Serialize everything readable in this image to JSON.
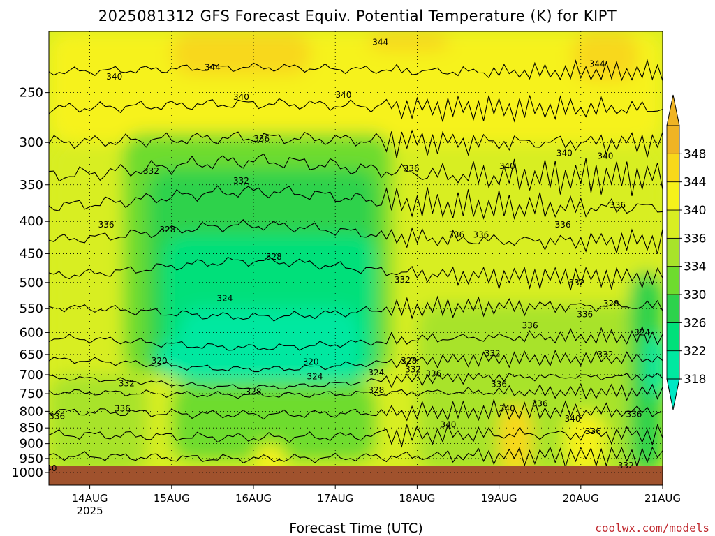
{
  "chart_data": {
    "type": "heatmap",
    "title": "2025081312 GFS Forecast Equiv. Potential Temperature (K) for KIPT",
    "xlabel": "Forecast Time (UTC)",
    "ylabel": "",
    "x_ticks": [
      {
        "label": "14AUG",
        "sub": "2025",
        "day": 1
      },
      {
        "label": "15AUG",
        "sub": "",
        "day": 2
      },
      {
        "label": "16AUG",
        "sub": "",
        "day": 3
      },
      {
        "label": "17AUG",
        "sub": "",
        "day": 4
      },
      {
        "label": "18AUG",
        "sub": "",
        "day": 5
      },
      {
        "label": "19AUG",
        "sub": "",
        "day": 6
      },
      {
        "label": "20AUG",
        "sub": "",
        "day": 7
      },
      {
        "label": "21AUG",
        "sub": "",
        "day": 8
      }
    ],
    "xlim_days": [
      0.5,
      8.0
    ],
    "y_ticks": [
      "250",
      "300",
      "350",
      "400",
      "450",
      "500",
      "550",
      "600",
      "650",
      "700",
      "750",
      "800",
      "850",
      "900",
      "950",
      "1000"
    ],
    "ylim_hpa": [
      1000,
      200
    ],
    "y_scale": "log",
    "grid": true,
    "colorbar": {
      "labels": [
        "318",
        "322",
        "326",
        "330",
        "334",
        "336",
        "340",
        "344",
        "348"
      ],
      "colors": [
        "#00e8a0",
        "#00e07a",
        "#2dd24c",
        "#6edc2e",
        "#a8e32a",
        "#d8ee22",
        "#f6f21a",
        "#f8d81a",
        "#f0b424"
      ]
    },
    "ground_color": "#a0522d",
    "contour_labels": [
      {
        "text": "344",
        "day": 4.55,
        "p": 208
      },
      {
        "text": "344",
        "day": 2.5,
        "p": 228
      },
      {
        "text": "344",
        "day": 7.2,
        "p": 225
      },
      {
        "text": "340",
        "day": 1.3,
        "p": 236
      },
      {
        "text": "340",
        "day": 2.85,
        "p": 254
      },
      {
        "text": "340",
        "day": 4.1,
        "p": 252
      },
      {
        "text": "336",
        "day": 3.1,
        "p": 296
      },
      {
        "text": "340",
        "day": 6.1,
        "p": 327
      },
      {
        "text": "340",
        "day": 6.8,
        "p": 312
      },
      {
        "text": "340",
        "day": 7.3,
        "p": 315
      },
      {
        "text": "332",
        "day": 1.75,
        "p": 333
      },
      {
        "text": "332",
        "day": 2.85,
        "p": 345
      },
      {
        "text": "336",
        "day": 4.93,
        "p": 330
      },
      {
        "text": "336",
        "day": 7.45,
        "p": 377
      },
      {
        "text": "336",
        "day": 1.2,
        "p": 405
      },
      {
        "text": "328",
        "day": 1.95,
        "p": 412
      },
      {
        "text": "336",
        "day": 5.48,
        "p": 420
      },
      {
        "text": "336",
        "day": 5.78,
        "p": 420
      },
      {
        "text": "336",
        "day": 6.78,
        "p": 405
      },
      {
        "text": "328",
        "day": 3.25,
        "p": 455
      },
      {
        "text": "332",
        "day": 4.82,
        "p": 495
      },
      {
        "text": "332",
        "day": 6.95,
        "p": 500
      },
      {
        "text": "324",
        "day": 2.65,
        "p": 530
      },
      {
        "text": "336",
        "day": 7.05,
        "p": 562
      },
      {
        "text": "328",
        "day": 7.37,
        "p": 540
      },
      {
        "text": "336",
        "day": 6.38,
        "p": 585
      },
      {
        "text": "324",
        "day": 7.75,
        "p": 600
      },
      {
        "text": "320",
        "day": 1.85,
        "p": 665
      },
      {
        "text": "320",
        "day": 3.7,
        "p": 668
      },
      {
        "text": "328",
        "day": 4.9,
        "p": 665
      },
      {
        "text": "332",
        "day": 7.3,
        "p": 650
      },
      {
        "text": "332",
        "day": 5.92,
        "p": 648
      },
      {
        "text": "332",
        "day": 4.95,
        "p": 687
      },
      {
        "text": "336",
        "day": 5.2,
        "p": 697
      },
      {
        "text": "324",
        "day": 3.75,
        "p": 705
      },
      {
        "text": "324",
        "day": 4.5,
        "p": 695
      },
      {
        "text": "332",
        "day": 1.45,
        "p": 723
      },
      {
        "text": "336",
        "day": 6.0,
        "p": 725
      },
      {
        "text": "328",
        "day": 3.0,
        "p": 745
      },
      {
        "text": "328",
        "day": 4.5,
        "p": 740
      },
      {
        "text": "336",
        "day": 1.4,
        "p": 792
      },
      {
        "text": "336",
        "day": 0.6,
        "p": 815
      },
      {
        "text": "336",
        "day": 6.5,
        "p": 778
      },
      {
        "text": "340",
        "day": 6.1,
        "p": 792
      },
      {
        "text": "340",
        "day": 6.9,
        "p": 822
      },
      {
        "text": "336",
        "day": 7.65,
        "p": 808
      },
      {
        "text": "340",
        "day": 5.38,
        "p": 840
      },
      {
        "text": "336",
        "day": 7.15,
        "p": 860
      },
      {
        "text": "340",
        "day": 0.5,
        "p": 985
      },
      {
        "text": "332",
        "day": 7.55,
        "p": 975
      }
    ],
    "credit": "coolwx.com/models"
  }
}
